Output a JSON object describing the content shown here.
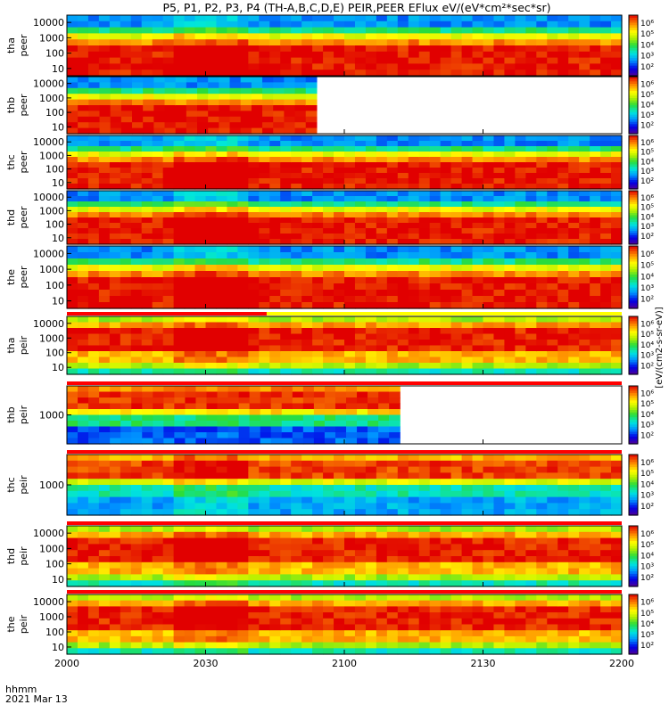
{
  "chart_data": {
    "type": "heatmap",
    "title": "P5, P1, P2, P3, P4 (TH-A,B,C,D,E) PEIR,PEER EFlux eV/(eV*cm²*sec*sr)",
    "x_ticks": [
      "2000",
      "2030",
      "2100",
      "2130",
      "2200"
    ],
    "x_label_line1": "hhmm",
    "x_label_line2": "2021 Mar 13",
    "colorbar_label": "[eV/(cm2-s-sr-eV)]",
    "colorbar_ticks": [
      "10²",
      "10³",
      "10⁴",
      "10⁵",
      "10⁶"
    ],
    "panels": [
      {
        "probe": "tha",
        "product": "peer",
        "label1": "tha",
        "label2": "peer",
        "y_ticks": [
          "10000",
          "1000",
          "100",
          "10"
        ],
        "data_coverage": 1.0
      },
      {
        "probe": "thb",
        "product": "peer",
        "label1": "thb",
        "label2": "peer",
        "y_ticks": [
          "10000",
          "1000",
          "100",
          "10"
        ],
        "data_coverage": 0.45
      },
      {
        "probe": "thc",
        "product": "peer",
        "label1": "thc",
        "label2": "peer",
        "y_ticks": [
          "10000",
          "1000",
          "100",
          "10"
        ],
        "data_coverage": 1.0
      },
      {
        "probe": "thd",
        "product": "peer",
        "label1": "thd",
        "label2": "peer",
        "y_ticks": [
          "10000",
          "1000",
          "100",
          "10"
        ],
        "data_coverage": 1.0
      },
      {
        "probe": "the",
        "product": "peer",
        "label1": "the",
        "label2": "peer",
        "y_ticks": [
          "10000",
          "1000",
          "100",
          "10"
        ],
        "data_coverage": 1.0
      },
      {
        "probe": "tha",
        "product": "peir",
        "label1": "tha",
        "label2": "peir",
        "y_ticks": [
          "10000",
          "1000",
          "100",
          "10"
        ],
        "data_coverage": 1.0
      },
      {
        "probe": "thb",
        "product": "peir",
        "label1": "thb",
        "label2": "peir",
        "y_ticks": [
          "1000"
        ],
        "data_coverage": 0.6
      },
      {
        "probe": "thc",
        "product": "peir",
        "label1": "thc",
        "label2": "peir",
        "y_ticks": [
          "1000"
        ],
        "data_coverage": 1.0
      },
      {
        "probe": "thd",
        "product": "peir",
        "label1": "thd",
        "label2": "peir",
        "y_ticks": [
          "10000",
          "1000",
          "100",
          "10"
        ],
        "data_coverage": 1.0
      },
      {
        "probe": "the",
        "product": "peir",
        "label1": "the",
        "label2": "peir",
        "y_ticks": [
          "10000",
          "1000",
          "100",
          "10"
        ],
        "data_coverage": 1.0
      }
    ]
  }
}
